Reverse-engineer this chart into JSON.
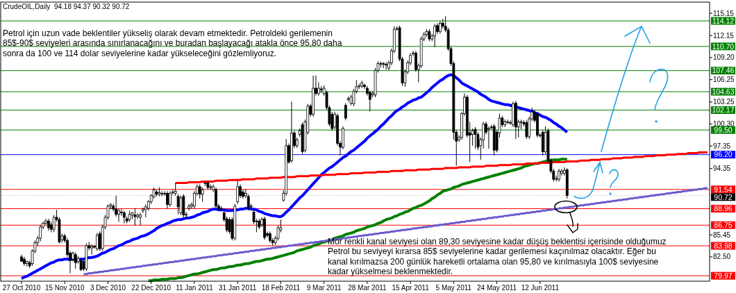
{
  "chart_data": {
    "type": "candlestick",
    "title": "CrudeOIL,Daily  94.18 94.37 90.32 90.72",
    "annotations": [
      "Petrol için uzun vade beklentiler yükseliş olarak devam etmektedir. Petroldeki gerilemenin\n85$-90$ seviyeleri arasında sınırlanacağını ve buradan başlayacağı atakla önce 95,80 daha\nsonra da 100 ve 114 dolar seviyelerine kadar yükseleceğini gözlemliyoruz.",
      "Mor renkli kanal seviyesi olan 89,30 seviyesine kadar düşüş beklentisi içerisinde olduğumuz\nPetrol bu seviyeyi kırarsa 85$ seviyelerine kadar gerilemesi kaçınılmaz olacaktır. Eğer bu\nkanal kırılmazsa 200 günlük hareketli ortalama olan 95,80 ve kırılmasıyla 100$ seviyesine\nkadar yükselmesi beklenmektedir."
    ],
    "categories": [
      "27 Oct 2010",
      null,
      null,
      null,
      null,
      null,
      null,
      null,
      null,
      null,
      null,
      null,
      null,
      null,
      null,
      null,
      "15 Nov 2010",
      null,
      null,
      null,
      null,
      null,
      null,
      null,
      null,
      null,
      null,
      null,
      null,
      null,
      null,
      null,
      "3 Dec 2010",
      null,
      null,
      null,
      null,
      null,
      null,
      null,
      null,
      null,
      null,
      null,
      null,
      null,
      null,
      null,
      "22 Dec 2010",
      null,
      null,
      null,
      null,
      null,
      null,
      null,
      null,
      null,
      null,
      null,
      null,
      null,
      null,
      null,
      "11 Jan 2011",
      null,
      null,
      null,
      null,
      null,
      null,
      null,
      null,
      null,
      null,
      null,
      null,
      null,
      null,
      null,
      "31 Jan 2011",
      null,
      null,
      null,
      null,
      null,
      null,
      null,
      null,
      null,
      null,
      null,
      null,
      null,
      null,
      null,
      "18 Feb 2011",
      null,
      null,
      null,
      null,
      null,
      null,
      null,
      null,
      null,
      null,
      null,
      null,
      null,
      null,
      null,
      "9 Mar 2011",
      null,
      null,
      null,
      null,
      null,
      null,
      null,
      null,
      null,
      null,
      null,
      null,
      null,
      null,
      null,
      "28 Mar 2011",
      null,
      null,
      null,
      null,
      null,
      null,
      null,
      null,
      null,
      null,
      null,
      null,
      null,
      null,
      null,
      "15 Apr 2011",
      null,
      null,
      null,
      null,
      null,
      null,
      null,
      null,
      null,
      null,
      null,
      null,
      null,
      null,
      null,
      "5 May 2011",
      null,
      null,
      null,
      null,
      null,
      null,
      null,
      null,
      null,
      null,
      null,
      null,
      null,
      null,
      null,
      "24 May 2011",
      null,
      null,
      null,
      null,
      null,
      null,
      null,
      null,
      null,
      null,
      null,
      null,
      null,
      null,
      null,
      "12 Jun 2011",
      null,
      null,
      null,
      null,
      null,
      null,
      null,
      null,
      null,
      null,
      null,
      null,
      null,
      null,
      null,
      null,
      null,
      null,
      null,
      null,
      null,
      null,
      null,
      null,
      null,
      null,
      null,
      null,
      null,
      null,
      null,
      null,
      null,
      null,
      null,
      null,
      null,
      null,
      null,
      null,
      null,
      null,
      null,
      null,
      null,
      null,
      null,
      null,
      null,
      null,
      null,
      null,
      null,
      null,
      null,
      null,
      null,
      null,
      null,
      null,
      null,
      null
    ],
    "ohlc": [
      [
        82.5,
        82.8,
        81.9,
        81.9
      ],
      [
        82.2,
        82.5,
        81.3,
        81.6
      ],
      [
        81.6,
        82.0,
        81.2,
        81.9
      ],
      [
        81.7,
        82.0,
        81.0,
        81.3
      ],
      [
        81.6,
        83.5,
        81.3,
        83.3
      ],
      [
        83.3,
        84.7,
        83.0,
        84.4
      ],
      [
        84.4,
        85.3,
        84.0,
        85.0
      ],
      [
        85.0,
        86.8,
        84.6,
        86.5
      ],
      [
        86.5,
        87.2,
        86.2,
        87.0
      ],
      [
        87.0,
        87.6,
        86.8,
        87.3
      ],
      [
        87.3,
        87.6,
        86.0,
        86.4
      ],
      [
        86.8,
        87.2,
        85.8,
        86.2
      ],
      [
        86.2,
        88.1,
        85.8,
        87.8
      ],
      [
        87.8,
        88.8,
        87.2,
        87.5
      ],
      [
        87.5,
        87.8,
        84.3,
        84.5
      ],
      [
        84.8,
        85.6,
        84.4,
        85.3
      ],
      [
        85.3,
        85.6,
        84.4,
        84.7
      ],
      [
        84.7,
        85.0,
        82.5,
        82.8
      ],
      [
        83.0,
        83.3,
        80.3,
        82.0
      ],
      [
        82.2,
        83.2,
        81.9,
        83.0
      ],
      [
        82.8,
        83.1,
        80.9,
        81.7
      ],
      [
        81.9,
        82.6,
        81.6,
        82.3
      ],
      [
        82.0,
        82.3,
        80.6,
        80.8
      ],
      [
        81.9,
        82.2,
        80.6,
        80.9
      ],
      [
        80.9,
        84.3,
        80.6,
        84.0
      ],
      [
        84.0,
        84.5,
        83.4,
        83.7
      ],
      [
        83.7,
        84.2,
        82.8,
        83.9
      ],
      [
        83.9,
        84.1,
        83.6,
        83.8
      ],
      [
        83.6,
        85.7,
        83.3,
        85.4
      ],
      [
        85.6,
        85.9,
        83.3,
        83.6
      ],
      [
        83.6,
        86.8,
        83.3,
        86.5
      ],
      [
        86.5,
        88.1,
        86.2,
        87.8
      ],
      [
        87.8,
        89.5,
        87.5,
        89.3
      ],
      [
        89.3,
        89.7,
        88.9,
        89.5
      ],
      [
        89.3,
        89.6,
        88.6,
        88.9
      ],
      [
        88.9,
        90.7,
        87.9,
        88.2
      ],
      [
        88.2,
        88.9,
        87.2,
        88.7
      ],
      [
        88.5,
        88.9,
        88.0,
        88.4
      ],
      [
        88.4,
        88.7,
        87.0,
        87.8
      ],
      [
        87.6,
        87.9,
        87.0,
        87.3
      ],
      [
        87.5,
        88.7,
        87.2,
        88.2
      ],
      [
        88.1,
        88.5,
        87.6,
        88.4
      ],
      [
        88.1,
        89.0,
        86.7,
        87.9
      ],
      [
        87.9,
        88.3,
        87.6,
        88.1
      ],
      [
        87.8,
        88.4,
        86.7,
        88.1
      ],
      [
        88.7,
        89.1,
        88.4,
        88.9
      ],
      [
        88.9,
        89.5,
        87.8,
        89.2
      ],
      [
        89.0,
        90.1,
        88.7,
        89.9
      ],
      [
        89.9,
        90.9,
        89.6,
        90.7
      ],
      [
        90.6,
        91.8,
        90.3,
        91.5
      ],
      [
        91.2,
        91.5,
        90.6,
        90.9
      ],
      [
        90.9,
        91.8,
        90.6,
        91.1
      ],
      [
        90.9,
        91.3,
        90.6,
        91.0
      ],
      [
        91.0,
        91.3,
        90.7,
        91.0
      ],
      [
        91.0,
        91.3,
        89.0,
        89.5
      ],
      [
        89.5,
        91.3,
        89.2,
        91.0
      ],
      [
        91.1,
        91.5,
        90.8,
        91.2
      ],
      [
        91.0,
        92.4,
        90.7,
        91.3
      ],
      [
        90.6,
        90.9,
        88.2,
        89.2
      ],
      [
        88.4,
        90.7,
        88.1,
        90.4
      ],
      [
        90.6,
        90.9,
        87.8,
        88.1
      ],
      [
        88.1,
        88.5,
        87.6,
        88.2
      ],
      [
        89.0,
        89.6,
        88.7,
        89.3
      ],
      [
        89.3,
        89.8,
        89.0,
        89.5
      ],
      [
        89.3,
        91.3,
        89.0,
        91.0
      ],
      [
        91.0,
        92.2,
        90.7,
        91.9
      ],
      [
        91.9,
        92.2,
        90.3,
        90.9
      ],
      [
        90.9,
        91.8,
        89.9,
        91.5
      ],
      [
        92.3,
        92.6,
        92.0,
        92.4
      ],
      [
        92.4,
        92.7,
        91.5,
        91.8
      ],
      [
        91.8,
        92.2,
        91.5,
        91.9
      ],
      [
        91.5,
        92.2,
        91.2,
        91.9
      ],
      [
        91.5,
        91.8,
        89.0,
        89.3
      ],
      [
        89.3,
        89.6,
        88.7,
        89.0
      ],
      [
        89.0,
        89.3,
        88.6,
        88.9
      ],
      [
        88.4,
        88.7,
        87.2,
        87.5
      ],
      [
        87.6,
        87.9,
        85.8,
        86.1
      ],
      [
        87.5,
        87.8,
        85.6,
        85.9
      ],
      [
        87.5,
        87.8,
        84.7,
        85.0
      ],
      [
        85.0,
        89.6,
        84.7,
        89.3
      ],
      [
        89.9,
        92.7,
        89.6,
        91.9
      ],
      [
        91.9,
        92.2,
        90.4,
        90.7
      ],
      [
        91.2,
        91.5,
        90.3,
        90.6
      ],
      [
        90.7,
        91.6,
        90.4,
        91.0
      ],
      [
        90.6,
        90.9,
        88.7,
        89.0
      ],
      [
        89.3,
        89.6,
        88.9,
        89.2
      ],
      [
        88.5,
        88.8,
        86.9,
        87.2
      ],
      [
        87.3,
        87.6,
        85.8,
        87.2
      ],
      [
        87.3,
        87.6,
        86.2,
        86.5
      ],
      [
        86.8,
        87.8,
        86.5,
        87.5
      ],
      [
        87.6,
        87.9,
        84.8,
        85.1
      ],
      [
        85.6,
        85.9,
        85.1,
        85.4
      ],
      [
        85.6,
        85.9,
        84.4,
        84.7
      ],
      [
        84.7,
        85.0,
        84.0,
        84.4
      ],
      [
        84.4,
        85.3,
        84.1,
        85.0
      ],
      [
        85.0,
        86.7,
        84.7,
        86.4
      ],
      [
        86.1,
        87.5,
        85.8,
        86.4
      ],
      [
        90.1,
        91.4,
        89.9,
        91.0
      ],
      [
        91.0,
        98.3,
        90.7,
        97.4
      ],
      [
        97.4,
        97.7,
        95.0,
        95.2
      ],
      [
        95.4,
        103.3,
        95.1,
        99.1
      ],
      [
        99.1,
        99.4,
        97.1,
        97.4
      ],
      [
        97.4,
        98.5,
        97.1,
        98.2
      ],
      [
        98.9,
        99.7,
        98.6,
        99.4
      ],
      [
        100.2,
        100.5,
        96.3,
        96.6
      ],
      [
        96.8,
        100.9,
        96.5,
        100.6
      ],
      [
        99.2,
        103.0,
        98.9,
        102.7
      ],
      [
        102.7,
        103.0,
        101.3,
        101.6
      ],
      [
        101.6,
        106.8,
        101.3,
        105.1
      ],
      [
        105.1,
        106.8,
        104.1,
        104.4
      ],
      [
        104.4,
        105.9,
        104.1,
        105.1
      ],
      [
        105.0,
        105.4,
        104.5,
        104.9
      ],
      [
        104.4,
        105.5,
        104.1,
        105.1
      ],
      [
        104.5,
        104.8,
        102.2,
        102.5
      ],
      [
        102.5,
        102.8,
        100.0,
        100.3
      ],
      [
        101.6,
        101.9,
        99.4,
        99.7
      ],
      [
        99.9,
        101.9,
        99.6,
        101.6
      ],
      [
        101.4,
        101.7,
        97.4,
        97.7
      ],
      [
        97.7,
        98.0,
        96.1,
        97.2
      ],
      [
        97.2,
        100.0,
        96.9,
        99.7
      ],
      [
        102.8,
        103.1,
        100.8,
        101.1
      ],
      [
        103.6,
        104.0,
        103.3,
        103.7
      ],
      [
        103.1,
        104.2,
        102.8,
        103.9
      ],
      [
        103.0,
        105.0,
        102.7,
        104.7
      ],
      [
        104.7,
        106.2,
        104.4,
        105.3
      ],
      [
        105.3,
        105.7,
        105.0,
        105.4
      ],
      [
        105.4,
        106.1,
        105.1,
        105.8
      ],
      [
        105.5,
        105.7,
        105.0,
        105.3
      ],
      [
        105.1,
        105.4,
        104.1,
        104.4
      ],
      [
        104.5,
        104.8,
        102.0,
        103.6
      ],
      [
        104.2,
        104.7,
        103.9,
        104.4
      ],
      [
        104.2,
        107.8,
        103.9,
        107.5
      ],
      [
        107.5,
        108.7,
        107.2,
        108.4
      ],
      [
        108.3,
        108.7,
        107.9,
        108.4
      ],
      [
        108.4,
        108.6,
        107.8,
        108.3
      ],
      [
        108.3,
        108.6,
        107.6,
        108.2
      ],
      [
        107.8,
        108.8,
        107.5,
        108.5
      ],
      [
        108.5,
        110.4,
        108.2,
        110.1
      ],
      [
        110.1,
        113.4,
        109.8,
        113.0
      ],
      [
        113.0,
        113.4,
        112.8,
        113.1
      ],
      [
        113.2,
        113.5,
        108.7,
        109.0
      ],
      [
        109.0,
        109.3,
        105.4,
        105.8
      ],
      [
        105.8,
        107.6,
        105.3,
        107.3
      ],
      [
        107.3,
        108.8,
        107.0,
        108.5
      ],
      [
        108.5,
        109.8,
        108.2,
        109.5
      ],
      [
        109.8,
        110.1,
        109.4,
        109.8
      ],
      [
        109.8,
        110.1,
        107.3,
        107.6
      ],
      [
        107.6,
        108.4,
        105.9,
        108.1
      ],
      [
        108.1,
        112.0,
        107.8,
        111.7
      ],
      [
        111.7,
        112.6,
        111.4,
        112.3
      ],
      [
        112.3,
        113.0,
        112.0,
        112.7
      ],
      [
        112.7,
        113.0,
        111.4,
        111.7
      ],
      [
        111.7,
        112.4,
        111.4,
        112.1
      ],
      [
        112.1,
        113.7,
        110.6,
        113.4
      ],
      [
        113.5,
        113.8,
        112.4,
        112.7
      ],
      [
        112.7,
        114.1,
        112.4,
        113.8
      ],
      [
        113.8,
        114.4,
        113.1,
        113.4
      ],
      [
        113.4,
        114.75,
        112.6,
        112.9
      ],
      [
        112.9,
        113.2,
        110.1,
        110.4
      ],
      [
        110.4,
        110.7,
        108.1,
        108.4
      ],
      [
        108.4,
        108.7,
        98.2,
        99.2
      ],
      [
        99.2,
        99.5,
        94.7,
        98.0
      ],
      [
        98.2,
        98.8,
        97.9,
        98.5
      ],
      [
        98.5,
        101.9,
        98.2,
        101.7
      ],
      [
        101.7,
        104.4,
        101.4,
        103.9
      ],
      [
        103.9,
        104.2,
        98.5,
        98.8
      ],
      [
        99.1,
        100.6,
        95.2,
        98.8
      ],
      [
        98.9,
        99.7,
        97.4,
        99.4
      ],
      [
        99.6,
        99.9,
        97.0,
        98.9
      ],
      [
        98.9,
        99.2,
        96.8,
        97.2
      ],
      [
        97.4,
        98.5,
        95.5,
        98.2
      ],
      [
        98.2,
        100.6,
        97.0,
        100.3
      ],
      [
        100.3,
        100.6,
        98.9,
        99.2
      ],
      [
        99.6,
        100.0,
        97.0,
        99.7
      ],
      [
        99.9,
        100.2,
        99.6,
        99.8
      ],
      [
        100.0,
        100.3,
        96.1,
        96.8
      ],
      [
        99.2,
        99.5,
        96.5,
        96.8
      ],
      [
        99.1,
        101.7,
        98.5,
        101.1
      ],
      [
        101.1,
        101.4,
        99.9,
        100.2
      ],
      [
        100.2,
        100.9,
        99.9,
        100.6
      ],
      [
        100.6,
        100.9,
        100.3,
        100.6
      ],
      [
        100.5,
        100.8,
        100.2,
        100.5
      ],
      [
        100.2,
        103.3,
        99.9,
        103.0
      ],
      [
        103.1,
        103.4,
        98.3,
        99.9
      ],
      [
        99.9,
        100.9,
        98.5,
        100.6
      ],
      [
        100.6,
        100.9,
        99.6,
        100.6
      ],
      [
        100.5,
        100.8,
        100.0,
        100.3
      ],
      [
        100.5,
        100.8,
        98.3,
        98.6
      ],
      [
        98.6,
        101.3,
        98.3,
        101.0
      ],
      [
        101.0,
        102.5,
        100.7,
        101.9
      ],
      [
        101.9,
        102.2,
        100.5,
        100.8
      ],
      [
        101.6,
        101.9,
        98.5,
        98.8
      ],
      [
        98.8,
        99.1,
        98.5,
        98.8
      ],
      [
        99.2,
        99.5,
        96.1,
        96.6
      ],
      [
        96.6,
        100.0,
        96.3,
        99.2
      ],
      [
        99.4,
        99.7,
        95.1,
        95.4
      ],
      [
        95.4,
        95.7,
        93.7,
        94.0
      ],
      [
        94.0,
        94.3,
        92.6,
        92.9
      ],
      [
        93.0,
        93.4,
        92.6,
        93.0
      ],
      [
        92.9,
        94.3,
        92.6,
        94.0
      ],
      [
        93.7,
        94.3,
        93.4,
        94.0
      ],
      [
        93.7,
        94.5,
        93.4,
        94.1
      ],
      [
        94.18,
        94.37,
        90.32,
        90.72
      ],
      null,
      null,
      null,
      null,
      null,
      null,
      null,
      null,
      null,
      null,
      null,
      null,
      null,
      null,
      null,
      null,
      null,
      null,
      null,
      null,
      null,
      null,
      null,
      null,
      null,
      null,
      null,
      null,
      null,
      null,
      null,
      null,
      null,
      null,
      null,
      null,
      null,
      null,
      null,
      null,
      null,
      null,
      null,
      null,
      null,
      null,
      null,
      null,
      null,
      null,
      null,
      null
    ],
    "series": [
      {
        "type": "line",
        "color": "#0000ff",
        "values": [
          79.6,
          79.8,
          79.9,
          80.1,
          80.3,
          80.5,
          80.7,
          80.9,
          81.1,
          81.3,
          81.5,
          81.7,
          81.8,
          82.0,
          82.1,
          82.1,
          82.2,
          82.2,
          82.2,
          82.2,
          82.1,
          82.1,
          82.2,
          82.2,
          82.3,
          82.4,
          82.4,
          82.5,
          82.6,
          82.8,
          83.0,
          83.1,
          83.3,
          83.5,
          83.6,
          83.8,
          84.0,
          84.1,
          84.3,
          84.5,
          84.6,
          84.8,
          84.9,
          85.0,
          85.2,
          85.3,
          85.4,
          85.6,
          85.8,
          86.0,
          86.3,
          86.5,
          86.7,
          86.8,
          87.0,
          87.1,
          87.3,
          87.4,
          87.5,
          87.5,
          87.6,
          87.7,
          87.7,
          87.8,
          87.9,
          88.1,
          88.2,
          88.4,
          88.5,
          88.6,
          88.8,
          88.9,
          88.9,
          88.8,
          88.8,
          88.8,
          88.7,
          88.7,
          88.7,
          88.8,
          88.8,
          88.9,
          88.9,
          89.0,
          89.0,
          88.9,
          88.9,
          88.8,
          88.6,
          88.5,
          88.3,
          88.2,
          88.1,
          88.0,
          88.0,
          87.9,
          87.9,
          88.1,
          88.5,
          88.8,
          89.2,
          89.6,
          90.0,
          90.4,
          90.7,
          91.1,
          91.5,
          91.9,
          92.3,
          92.7,
          93.1,
          93.5,
          93.8,
          94.1,
          94.4,
          94.6,
          94.9,
          95.2,
          95.5,
          95.8,
          96.0,
          96.3,
          96.6,
          96.8,
          97.1,
          97.4,
          97.7,
          98.0,
          98.4,
          98.7,
          99.0,
          99.3,
          99.6,
          100.0,
          100.3,
          100.7,
          101.1,
          101.4,
          101.8,
          102.1,
          102.3,
          102.6,
          102.8,
          103.1,
          103.3,
          103.5,
          103.6,
          103.8,
          103.9,
          104.2,
          104.5,
          104.8,
          105.2,
          105.5,
          105.8,
          106.1,
          106.3,
          106.6,
          106.8,
          106.9,
          106.8,
          106.5,
          106.2,
          105.8,
          105.6,
          105.4,
          105.2,
          105.0,
          104.8,
          104.6,
          104.3,
          104.1,
          103.9,
          103.6,
          103.4,
          103.3,
          103.2,
          103.1,
          103.0,
          102.9,
          102.9,
          102.8,
          102.7,
          102.6,
          102.5,
          102.4,
          102.3,
          102.2,
          102.1,
          102.0,
          101.8,
          101.7,
          101.5,
          101.3,
          101.2,
          101.0,
          100.8,
          100.5,
          100.3,
          100.0,
          99.8,
          99.5,
          99.2,
          null,
          null,
          null,
          null,
          null,
          null,
          null,
          null,
          null,
          null,
          null,
          null,
          null,
          null,
          null,
          null,
          null,
          null,
          null,
          null,
          null,
          null,
          null,
          null,
          null,
          null,
          null,
          null,
          null,
          null,
          null,
          null,
          null,
          null,
          null,
          null,
          null,
          null,
          null,
          null,
          null,
          null,
          null,
          null,
          null,
          null,
          null,
          null,
          null,
          null,
          null,
          null
        ]
      },
      {
        "type": "line",
        "color": "#008000",
        "values": [
          null,
          null,
          null,
          null,
          null,
          null,
          null,
          null,
          null,
          null,
          null,
          null,
          null,
          null,
          null,
          null,
          null,
          null,
          null,
          null,
          null,
          null,
          null,
          null,
          null,
          null,
          null,
          null,
          null,
          null,
          null,
          null,
          null,
          null,
          null,
          null,
          null,
          null,
          null,
          null,
          null,
          null,
          null,
          null,
          null,
          null,
          null,
          79.3,
          79.3,
          79.4,
          79.4,
          79.4,
          79.5,
          79.5,
          79.5,
          79.6,
          79.6,
          79.6,
          79.7,
          79.7,
          79.8,
          79.9,
          80.0,
          80.1,
          80.2,
          80.2,
          80.3,
          80.4,
          80.5,
          80.6,
          80.7,
          80.8,
          80.8,
          80.9,
          81.0,
          81.0,
          81.1,
          81.2,
          81.2,
          81.3,
          81.4,
          81.4,
          81.5,
          81.6,
          81.6,
          81.7,
          81.8,
          81.9,
          81.9,
          82.0,
          82.1,
          82.2,
          82.2,
          82.3,
          82.4,
          82.5,
          82.6,
          82.7,
          82.8,
          82.9,
          83.0,
          83.1,
          83.3,
          83.4,
          83.5,
          83.6,
          83.7,
          83.8,
          84.0,
          84.1,
          84.2,
          84.4,
          84.5,
          84.6,
          84.7,
          84.8,
          85.0,
          85.1,
          85.2,
          85.3,
          85.5,
          85.6,
          85.7,
          85.8,
          86.0,
          86.1,
          86.2,
          86.3,
          86.5,
          86.6,
          86.7,
          86.8,
          87.0,
          87.1,
          87.3,
          87.5,
          87.6,
          87.7,
          87.9,
          88.0,
          88.2,
          88.3,
          88.5,
          88.6,
          88.8,
          89.0,
          89.1,
          89.3,
          89.4,
          89.6,
          89.8,
          90.0,
          90.3,
          90.5,
          90.8,
          91.0,
          91.3,
          91.4,
          91.5,
          91.6,
          91.8,
          91.9,
          92.0,
          92.2,
          92.3,
          92.4,
          92.5,
          92.6,
          92.7,
          92.8,
          92.9,
          93.0,
          93.1,
          93.2,
          93.3,
          93.4,
          93.5,
          93.6,
          93.7,
          93.8,
          93.9,
          94.0,
          94.1,
          94.2,
          94.3,
          94.4,
          94.6,
          94.7,
          94.8,
          94.9,
          95.0,
          95.0,
          95.1,
          95.2,
          95.3,
          95.4,
          95.4,
          95.5,
          95.5,
          95.5,
          95.6,
          95.6,
          95.6,
          null,
          null,
          null,
          null,
          null,
          null,
          null,
          null,
          null,
          null,
          null,
          null,
          null,
          null,
          null,
          null,
          null,
          null,
          null,
          null,
          null,
          null,
          null,
          null,
          null,
          null,
          null,
          null,
          null,
          null,
          null,
          null,
          null,
          null,
          null,
          null,
          null,
          null,
          null,
          null,
          null,
          null,
          null,
          null,
          null,
          null,
          null,
          null,
          null,
          null,
          null,
          null
        ]
      },
      {
        "type": "line",
        "color": "#ff0000",
        "values": [
          null,
          null,
          null,
          null,
          null,
          null,
          null,
          null,
          null,
          null,
          null,
          null,
          null,
          null,
          null,
          null,
          null,
          null,
          null,
          null,
          null,
          null,
          null,
          null,
          null,
          null,
          null,
          null,
          null,
          null,
          null,
          null,
          null,
          null,
          null,
          null,
          null,
          null,
          null,
          null,
          null,
          null,
          null,
          null,
          null,
          null,
          null,
          null,
          null,
          null,
          null,
          null,
          null,
          null,
          null,
          null,
          null,
          92.4,
          92.4,
          92.4,
          92.4,
          92.4,
          92.5,
          92.5,
          92.5,
          92.5,
          92.5,
          92.6,
          92.6,
          92.6,
          92.6,
          92.6,
          92.7,
          92.7,
          92.7,
          92.7,
          92.7,
          92.8,
          92.8,
          92.8,
          92.8,
          92.8,
          92.9,
          92.9,
          92.9,
          92.9,
          92.9,
          93.0,
          93.0,
          93.0,
          93.0,
          93.0,
          93.1,
          93.1,
          93.1,
          93.1,
          93.1,
          93.2,
          93.2,
          93.2,
          93.2,
          93.2,
          93.3,
          93.3,
          93.3,
          93.3,
          93.3,
          93.4,
          93.4,
          93.4,
          93.4,
          93.4,
          93.5,
          93.5,
          93.5,
          93.5,
          93.5,
          93.6,
          93.6,
          93.6,
          93.6,
          93.6,
          93.7,
          93.7,
          93.7,
          93.7,
          93.7,
          93.8,
          93.8,
          93.8,
          93.8,
          93.8,
          93.9,
          93.9,
          93.9,
          93.9,
          93.9,
          94.0,
          94.0,
          94.0,
          94.0,
          94.0,
          94.1,
          94.1,
          94.1,
          94.1,
          94.1,
          94.2,
          94.2,
          94.2,
          94.2,
          94.2,
          94.3,
          94.3,
          94.3,
          94.3,
          94.3,
          94.4,
          94.4,
          94.4,
          94.4,
          94.4,
          94.5,
          94.5,
          94.5,
          94.5,
          94.5,
          94.6,
          94.6,
          94.6,
          94.6,
          94.6,
          94.7,
          94.7,
          94.7,
          94.7,
          94.7,
          94.8,
          94.8,
          94.8,
          94.8,
          94.8,
          94.9,
          94.9,
          94.9,
          94.9,
          94.9,
          95.0,
          95.0,
          95.0,
          95.0,
          95.0,
          95.1,
          95.1,
          95.1,
          95.1,
          95.1,
          95.2,
          95.2,
          95.2,
          95.2,
          95.2,
          95.3,
          95.3,
          95.3,
          95.3,
          95.3,
          95.4,
          95.4,
          95.4,
          95.4,
          95.5,
          95.5,
          95.5,
          95.5,
          95.6,
          95.6,
          95.6,
          95.6,
          95.7,
          95.7,
          95.7,
          95.7,
          95.8,
          95.8,
          95.8,
          95.8,
          95.9,
          95.9,
          95.9,
          95.9,
          96.0,
          96.0,
          96.0,
          96.0,
          96.1,
          96.1,
          96.1,
          96.1,
          96.2,
          96.2,
          96.2,
          96.2,
          96.3,
          96.3,
          96.3,
          96.3,
          96.4,
          96.4,
          96.4,
          96.4,
          96.5,
          96.5,
          96.5,
          96.5
        ]
      },
      {
        "type": "line",
        "color": "#6a5acd",
        "values": [
          null,
          null,
          null,
          null,
          null,
          null,
          null,
          null,
          null,
          null,
          null,
          null,
          null,
          null,
          null,
          null,
          null,
          null,
          null,
          null,
          null,
          null,
          null,
          80.2,
          80.2,
          80.3,
          80.3,
          80.4,
          80.4,
          80.5,
          80.5,
          80.6,
          80.6,
          80.7,
          80.7,
          80.8,
          80.8,
          80.9,
          80.9,
          81.0,
          81.0,
          81.1,
          81.1,
          81.2,
          81.2,
          81.3,
          81.3,
          81.4,
          81.4,
          81.5,
          81.5,
          81.6,
          81.6,
          81.7,
          81.7,
          81.8,
          81.8,
          81.9,
          81.9,
          82.0,
          82.0,
          82.1,
          82.1,
          82.2,
          82.2,
          82.3,
          82.3,
          82.4,
          82.4,
          82.5,
          82.5,
          82.6,
          82.6,
          82.7,
          82.7,
          82.8,
          82.8,
          82.9,
          82.9,
          83.0,
          83.0,
          83.1,
          83.1,
          83.2,
          83.2,
          83.3,
          83.3,
          83.4,
          83.4,
          83.5,
          83.5,
          83.6,
          83.6,
          83.7,
          83.7,
          83.8,
          83.8,
          83.9,
          83.9,
          84.0,
          84.0,
          84.1,
          84.1,
          84.2,
          84.2,
          84.3,
          84.3,
          84.4,
          84.4,
          84.5,
          84.5,
          84.6,
          84.6,
          84.7,
          84.7,
          84.8,
          84.8,
          84.9,
          84.9,
          85.0,
          85.0,
          85.1,
          85.1,
          85.2,
          85.2,
          85.3,
          85.3,
          85.4,
          85.4,
          85.5,
          85.5,
          85.6,
          85.6,
          85.7,
          85.7,
          85.8,
          85.8,
          85.9,
          85.9,
          86.0,
          86.0,
          86.1,
          86.1,
          86.2,
          86.2,
          86.3,
          86.3,
          86.4,
          86.4,
          86.5,
          86.5,
          86.6,
          86.6,
          86.7,
          86.7,
          86.8,
          86.8,
          86.9,
          86.9,
          87.0,
          87.0,
          87.1,
          87.1,
          87.2,
          87.2,
          87.3,
          87.3,
          87.4,
          87.4,
          87.5,
          87.5,
          87.6,
          87.6,
          87.7,
          87.7,
          87.8,
          87.8,
          87.9,
          87.9,
          88.0,
          88.0,
          88.1,
          88.1,
          88.2,
          88.2,
          88.3,
          88.3,
          88.4,
          88.4,
          88.5,
          88.5,
          88.6,
          88.6,
          88.7,
          88.7,
          88.8,
          88.8,
          88.9,
          88.9,
          89.0,
          89.0,
          89.1,
          89.1,
          89.2,
          89.2,
          89.3,
          89.3,
          89.4,
          89.4,
          89.5,
          89.5,
          89.6,
          89.6,
          89.7,
          89.7,
          89.8,
          89.8,
          89.9,
          89.9,
          90.0,
          90.0,
          90.1,
          90.1,
          90.2,
          90.2,
          90.3,
          90.3,
          90.4,
          90.4,
          90.5,
          90.5,
          90.6,
          90.6,
          90.7,
          90.7,
          90.8,
          90.8,
          90.9,
          90.9,
          91.0,
          91.0,
          91.1,
          91.1,
          91.2,
          91.2,
          91.3,
          91.3,
          91.4,
          91.4,
          91.5,
          91.5,
          91.6,
          91.6,
          91.7,
          91.7
        ]
      }
    ],
    "ylim": [
      79.24,
      116.64
    ],
    "yticks": [
      {
        "value": 115.15,
        "label": "115.15"
      },
      {
        "value": 112.15,
        "label": "112.15"
      },
      {
        "value": 109.2,
        "label": "109.20"
      },
      {
        "value": 106.25,
        "label": "106.25"
      },
      {
        "value": 103.25,
        "label": "103.25"
      },
      {
        "value": 100.3,
        "label": "100.30"
      },
      {
        "value": 97.35,
        "label": "97.35"
      },
      {
        "value": 94.35,
        "label": "94.35"
      },
      {
        "value": 85.45,
        "label": "85.45"
      },
      {
        "value": 82.5,
        "label": "82.50"
      }
    ],
    "ref_lines": [
      {
        "axis": "y",
        "value": 114.12,
        "label": "114.12",
        "color": "#008000",
        "line_style": "solid"
      },
      {
        "axis": "y",
        "value": 110.7,
        "label": "110.70",
        "color": "#008000",
        "line_style": "solid"
      },
      {
        "axis": "y",
        "value": 107.46,
        "label": "107.46",
        "color": "#008000",
        "line_style": "solid"
      },
      {
        "axis": "y",
        "value": 104.63,
        "label": "104.63",
        "color": "#008000",
        "line_style": "solid"
      },
      {
        "axis": "y",
        "value": 102.17,
        "label": "102.17",
        "color": "#008000",
        "line_style": "solid"
      },
      {
        "axis": "y",
        "value": 99.5,
        "label": "99.50",
        "color": "#008000",
        "line_style": "solid"
      },
      {
        "axis": "y",
        "value": 96.2,
        "label": "96.20",
        "color": "#0000ff",
        "line_style": "solid"
      },
      {
        "axis": "y",
        "value": 91.54,
        "label": "91.54",
        "color": "#ff0000",
        "line_style": "solid"
      },
      {
        "axis": "y",
        "value": 90.72,
        "label": "90.72",
        "color": "#c8a8c8",
        "line_style": "dotted"
      },
      {
        "axis": "y",
        "value": 88.96,
        "label": "88.96",
        "color": "#ff0000",
        "line_style": "solid"
      },
      {
        "axis": "y",
        "value": 86.75,
        "label": "86.75",
        "color": "#ff0000",
        "line_style": "solid"
      },
      {
        "axis": "y",
        "value": 83.98,
        "label": "83.98",
        "color": "#ff0000",
        "line_style": "solid"
      },
      {
        "axis": "y",
        "value": 79.97,
        "label": "79.97",
        "color": "#ff0000",
        "line_style": "solid"
      }
    ]
  }
}
